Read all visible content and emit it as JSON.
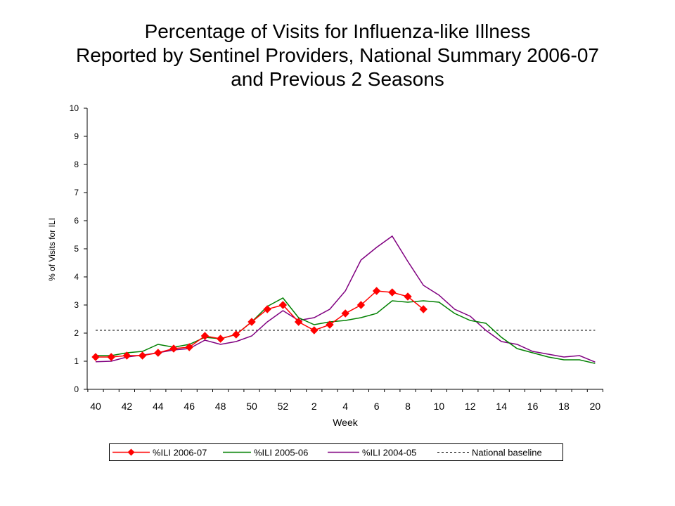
{
  "chart_data": {
    "type": "line",
    "title_lines": [
      "Percentage of Visits for Influenza-like Illness",
      "Reported by Sentinel Providers, National Summary 2006-07",
      "and Previous 2 Seasons"
    ],
    "xlabel": "Week",
    "ylabel": "% of Visits for ILI",
    "ylim": [
      0,
      10
    ],
    "yticks": [
      "0",
      "1",
      "2",
      "3",
      "4",
      "5",
      "6",
      "7",
      "8",
      "9",
      "10"
    ],
    "weeks": [
      "40",
      "41",
      "42",
      "43",
      "44",
      "45",
      "46",
      "47",
      "48",
      "49",
      "50",
      "51",
      "52",
      "1",
      "2",
      "3",
      "4",
      "5",
      "6",
      "7",
      "8",
      "9",
      "10",
      "11",
      "12",
      "13",
      "14",
      "15",
      "16",
      "17",
      "18",
      "19",
      "20"
    ],
    "xtick_labels": [
      "40",
      "42",
      "44",
      "46",
      "48",
      "50",
      "52",
      "2",
      "4",
      "6",
      "8",
      "10",
      "12",
      "14",
      "16",
      "18",
      "20"
    ],
    "series": [
      {
        "name": "%ILI 2006-07",
        "color": "#ff0000",
        "marker": "diamond",
        "values": [
          1.15,
          1.15,
          1.2,
          1.2,
          1.3,
          1.45,
          1.5,
          1.9,
          1.8,
          1.95,
          2.4,
          2.85,
          3.0,
          2.4,
          2.1,
          2.3,
          2.7,
          3.0,
          3.5,
          3.45,
          3.3,
          2.85
        ]
      },
      {
        "name": "%ILI 2005-06",
        "color": "#008000",
        "values": [
          1.2,
          1.2,
          1.3,
          1.35,
          1.6,
          1.5,
          1.6,
          1.85,
          1.8,
          1.95,
          2.4,
          2.95,
          3.25,
          2.55,
          2.3,
          2.4,
          2.45,
          2.55,
          2.7,
          3.15,
          3.1,
          3.15,
          3.1,
          2.7,
          2.45,
          2.35,
          1.85,
          1.45,
          1.3,
          1.15,
          1.05,
          1.05,
          0.92
        ]
      },
      {
        "name": "%ILI 2004-05",
        "color": "#800080",
        "values": [
          0.98,
          1.0,
          1.15,
          1.22,
          1.3,
          1.4,
          1.45,
          1.75,
          1.6,
          1.7,
          1.9,
          2.4,
          2.8,
          2.45,
          2.55,
          2.85,
          3.5,
          4.6,
          5.05,
          5.45,
          4.55,
          3.7,
          3.35,
          2.85,
          2.6,
          2.1,
          1.7,
          1.6,
          1.35,
          1.25,
          1.15,
          1.2,
          0.97
        ]
      },
      {
        "name": "National baseline",
        "color": "#000000",
        "dashed": true,
        "constant": 2.1
      }
    ],
    "legend_position": "bottom",
    "grid": false
  }
}
